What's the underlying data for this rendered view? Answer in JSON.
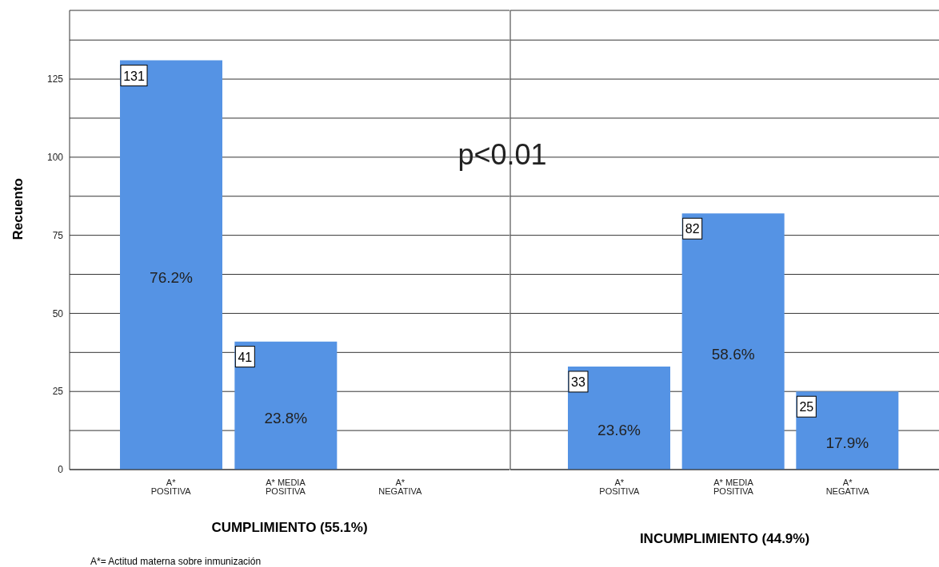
{
  "chart_data": [
    {
      "type": "bar",
      "xlabel": "CUMPLIMIENTO (55.1%)",
      "ylabel": "Recuento",
      "categories": [
        "A* POSITIVA",
        "A* MEDIA POSITIVA",
        "A* NEGATIVA"
      ],
      "values": [
        131,
        41,
        null
      ],
      "color": "#5593e4",
      "data_labels": true,
      "ylim": [
        0,
        147
      ],
      "yticks": [
        0,
        {
          "value": 12.5,
          "label": null
        },
        25,
        {
          "value": 37.5,
          "label": null
        },
        50,
        {
          "value": 62.5,
          "label": null
        },
        75,
        {
          "value": 87.5,
          "label": null
        },
        100,
        {
          "value": 112.5,
          "label": null
        },
        125,
        {
          "value": 137.5,
          "label": null
        }
      ],
      "grid": "y",
      "legend": false,
      "annotations": [
        "76.2%",
        "23.8%",
        "p<0.01",
        "A*= Actitud materna sobre inmunización"
      ]
    },
    {
      "type": "bar",
      "xlabel": "INCUMPLIMIENTO (44.9%)",
      "categories": [
        "A* POSITIVA",
        "A* MEDIA POSITIVA",
        "A* NEGATIVA"
      ],
      "values": [
        33,
        82,
        25
      ],
      "color": "#5593e4",
      "data_labels": true,
      "ylim": [
        0,
        147
      ],
      "yticks": [
        0,
        {
          "value": 12.5,
          "label": null
        },
        25,
        {
          "value": 37.5,
          "label": null
        },
        50,
        {
          "value": 62.5,
          "label": null
        },
        75,
        {
          "value": 87.5,
          "label": null
        },
        100,
        {
          "value": 112.5,
          "label": null
        },
        125,
        {
          "value": 137.5,
          "label": null
        }
      ],
      "grid": "y",
      "legend": false,
      "tick_labels": "x",
      "annotations": [
        "23.6%",
        "58.6%",
        "17.9%"
      ]
    }
  ]
}
